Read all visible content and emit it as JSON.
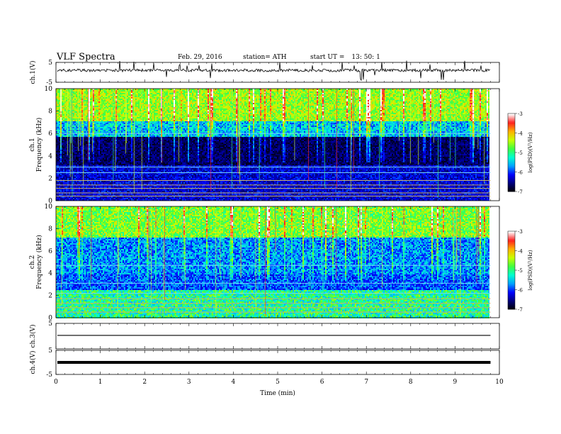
{
  "header": {
    "title": "VLF Spectra",
    "date": "Feb. 29, 2016",
    "station": "station= ATH",
    "start_label": "start  UT  =",
    "start_value": "13: 50: 1"
  },
  "chart_data": [
    {
      "type": "line",
      "panel": "ch1-waveform",
      "ylabel": "ch.1(V)",
      "ylim": [
        -5,
        5
      ],
      "yticks": [
        "5",
        "-5"
      ],
      "baseline_v": 1.0,
      "color": "#000000"
    },
    {
      "type": "heatmap",
      "panel": "ch1-spectrogram",
      "ylabel": [
        "ch.1",
        "Frequency  (kHz)"
      ],
      "ylim": [
        0,
        10
      ],
      "yticks": [
        "10",
        "8",
        "6",
        "4",
        "2",
        "0"
      ],
      "colorbar": {
        "label": "log(PSD)(V²/Hz)",
        "range": [
          -7,
          -3
        ],
        "ticks": [
          "-3",
          "-4",
          "-5",
          "-6",
          "-7"
        ]
      }
    },
    {
      "type": "heatmap",
      "panel": "ch2-spectrogram",
      "ylabel": [
        "ch.2",
        "Frequency  (kHz)"
      ],
      "ylim": [
        0,
        10
      ],
      "yticks": [
        "10",
        "8",
        "6",
        "4",
        "2",
        "0"
      ],
      "colorbar": {
        "label": "log(PSD)(V²/Hz)",
        "range": [
          -7,
          -3
        ],
        "ticks": [
          "-3",
          "-4",
          "-5",
          "-6",
          "-7"
        ]
      }
    },
    {
      "type": "line",
      "panel": "ch3-waveform",
      "ylabel": "ch.3(V)",
      "ylim": [
        -5,
        5
      ],
      "yticks": [
        "5"
      ],
      "baseline_v": 0.3,
      "color": "#000000"
    },
    {
      "type": "line",
      "panel": "ch4-waveform",
      "ylabel": "ch.4(V)",
      "ylim": [
        -5,
        5
      ],
      "yticks": [
        "5",
        "-5"
      ],
      "baseline_v": 0.0,
      "color": "#000000"
    }
  ],
  "xaxis": {
    "label": "Time  (min)",
    "ticks": [
      "0",
      "1",
      "2",
      "3",
      "4",
      "5",
      "6",
      "7",
      "8",
      "9",
      "10"
    ],
    "xlim": [
      0,
      10
    ],
    "data_end_min": 9.8
  },
  "colormap": [
    "#000000",
    "#00007a",
    "#0000ff",
    "#00a0ff",
    "#00ffd0",
    "#40ff40",
    "#c8ff00",
    "#ffb000",
    "#ff2020",
    "#ffffff"
  ]
}
